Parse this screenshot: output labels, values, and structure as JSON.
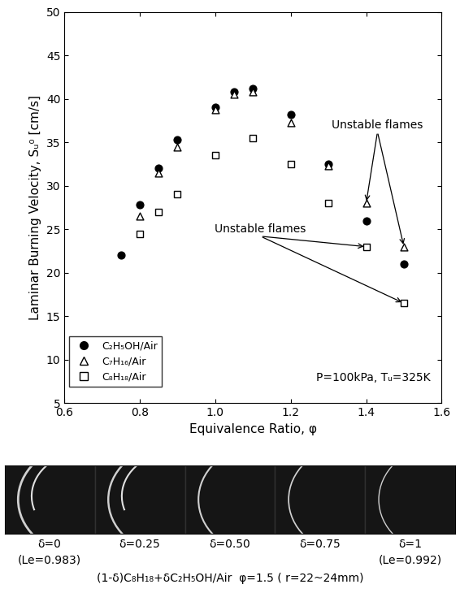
{
  "chart_data": {
    "type": "scatter",
    "x_label": "Equivalence Ratio, φ",
    "y_label": "Laminar Burning Velocity, Sᵤ⁰ [cm/s]",
    "xlim": [
      0.6,
      1.6
    ],
    "xticks": [
      0.6,
      0.8,
      1.0,
      1.2,
      1.4,
      1.6
    ],
    "ylim": [
      5,
      50
    ],
    "yticks": [
      5,
      10,
      15,
      20,
      25,
      30,
      35,
      40,
      45,
      50
    ],
    "legend": "lower left",
    "annotations": [
      {
        "text": "P=100kPa, Tᵤ=325K"
      },
      {
        "text": "Unstable flames",
        "targets": [
          [
            1.4,
            28
          ],
          [
            1.5,
            23
          ]
        ]
      },
      {
        "text": "Unstable flames",
        "targets": [
          [
            1.4,
            23
          ],
          [
            1.5,
            16.5
          ]
        ]
      }
    ],
    "series": [
      {
        "name": "C₂H₅OH/Air",
        "color": "#000000",
        "marker": "filled_circle",
        "x": [
          0.75,
          0.8,
          0.85,
          0.9,
          1.0,
          1.05,
          1.1,
          1.2,
          1.3,
          1.4,
          1.5
        ],
        "values": [
          22,
          27.8,
          32,
          35.3,
          39,
          40.8,
          41.2,
          38.2,
          32.5,
          26,
          21
        ]
      },
      {
        "name": "C₇H₁₆/Air",
        "color": "#000000",
        "marker": "open_triangle",
        "x": [
          0.8,
          0.85,
          0.9,
          1.0,
          1.05,
          1.1,
          1.2,
          1.3,
          1.4,
          1.5
        ],
        "values": [
          26.5,
          31.5,
          34.5,
          38.8,
          40.5,
          40.8,
          37.3,
          32.3,
          28,
          23
        ]
      },
      {
        "name": "C₈H₁₈/Air",
        "color": "#000000",
        "marker": "open_square",
        "x": [
          0.8,
          0.85,
          0.9,
          1.0,
          1.1,
          1.2,
          1.3,
          1.4,
          1.5
        ],
        "values": [
          24.5,
          27,
          29,
          33.5,
          35.5,
          32.5,
          28,
          23,
          16.5
        ]
      }
    ]
  },
  "flame_images": {
    "panels": [
      {
        "label": "δ=0",
        "lewis": "(Le=0.983)"
      },
      {
        "label": "δ=0.25"
      },
      {
        "label": "δ=0.50"
      },
      {
        "label": "δ=0.75"
      },
      {
        "label": "δ=1",
        "lewis": "(Le=0.992)"
      }
    ],
    "caption": "(1-δ)C₈H₁₈+δC₂H₅OH/Air  φ=1.5 ( r=22~24mm)"
  }
}
